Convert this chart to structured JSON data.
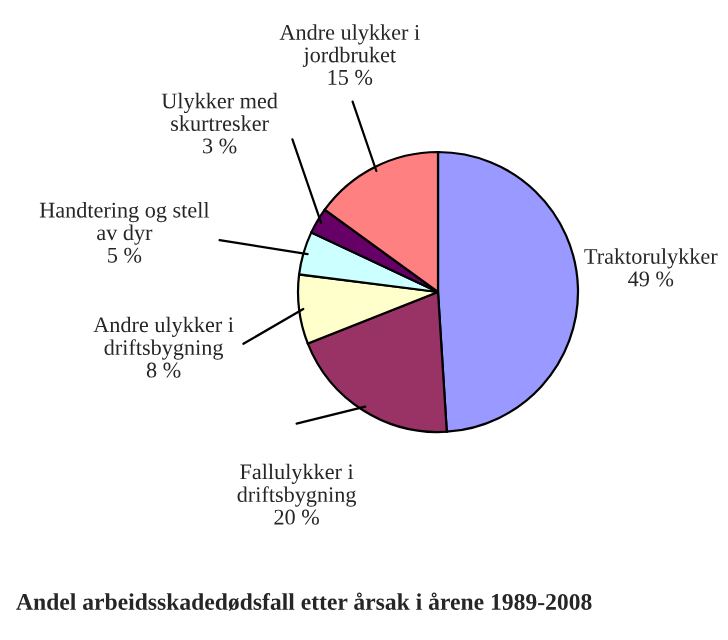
{
  "chart_data": {
    "type": "pie",
    "title": "Andel arbeidsskadedødsfall etter årsak i årene 1989-2008",
    "categories": [
      "Traktorulykker",
      "Fallulykker i\ndriftsbygning",
      "Andre ulykker i\ndriftsbygning",
      "Handtering og stell\nav dyr",
      "Ulykker med\nskurtresker",
      "Andre ulykker i\njordbruket"
    ],
    "values": [
      49,
      20,
      8,
      5,
      3,
      15
    ],
    "value_labels": [
      "49 %",
      "20 %",
      "8 %",
      "5 %",
      "3 %",
      "15 %"
    ],
    "colors": [
      "#9999ff",
      "#993366",
      "#ffffcc",
      "#ccffff",
      "#660066",
      "#ff8080"
    ],
    "legend": false
  }
}
